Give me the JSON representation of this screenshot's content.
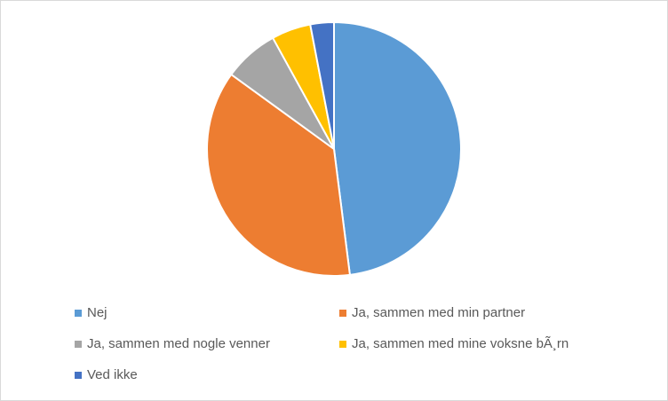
{
  "chart_data": {
    "type": "pie",
    "categories": [
      "Nej",
      "Ja, sammen med min partner",
      "Ja, sammen med nogle venner",
      "Ja, sammen med mine voksne bÃ¸rn",
      "Ved ikke"
    ],
    "values": [
      48,
      37,
      7,
      5,
      3
    ],
    "colors": [
      "#5b9bd5",
      "#ed7d31",
      "#a5a5a5",
      "#ffc000",
      "#4472c4"
    ],
    "legend": "bottom"
  }
}
